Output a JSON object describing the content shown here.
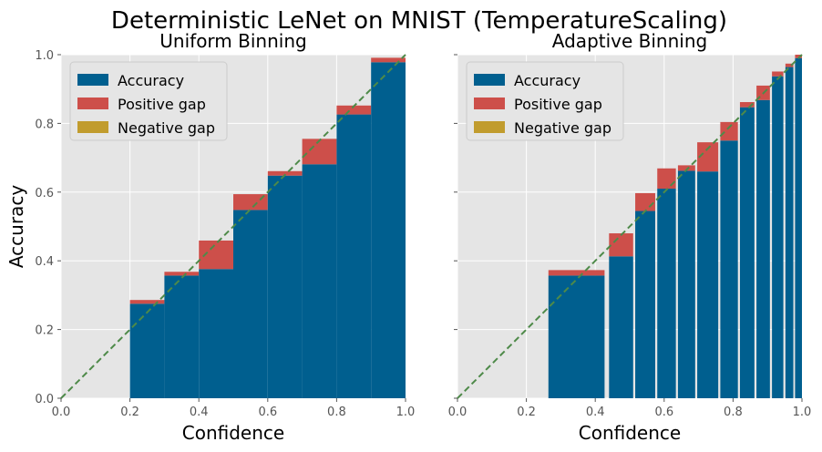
{
  "figure_title": "Deterministic LeNet on MNIST (TemperatureScaling)",
  "colors": {
    "accuracy": "#005f8f",
    "positive_gap": "#cd4f4a",
    "negative_gap": "#c19c2e",
    "diagonal": "#4e8a49",
    "axes_bg": "#e5e5e5",
    "grid": "#ffffff"
  },
  "chart_data": [
    {
      "type": "bar",
      "title": "Uniform Binning",
      "xlabel": "Confidence",
      "ylabel": "Accuracy",
      "xlim": [
        0,
        1
      ],
      "ylim": [
        0,
        1
      ],
      "xticks": [
        "0.0",
        "0.2",
        "0.4",
        "0.6",
        "0.8",
        "1.0"
      ],
      "yticks": [
        "0.0",
        "0.2",
        "0.4",
        "0.6",
        "0.8",
        "1.0"
      ],
      "grid": true,
      "legend_position": "top-left",
      "legend": [
        "Accuracy",
        "Positive gap",
        "Negative gap"
      ],
      "diagonal": "dashed y = x",
      "bins": [
        {
          "x0": 0.2,
          "x1": 0.3,
          "accuracy": 0.275,
          "confidence": 0.286
        },
        {
          "x0": 0.3,
          "x1": 0.4,
          "accuracy": 0.357,
          "confidence": 0.368
        },
        {
          "x0": 0.4,
          "x1": 0.5,
          "accuracy": 0.376,
          "confidence": 0.459
        },
        {
          "x0": 0.5,
          "x1": 0.6,
          "accuracy": 0.548,
          "confidence": 0.594
        },
        {
          "x0": 0.6,
          "x1": 0.7,
          "accuracy": 0.648,
          "confidence": 0.661
        },
        {
          "x0": 0.7,
          "x1": 0.8,
          "accuracy": 0.681,
          "confidence": 0.755
        },
        {
          "x0": 0.8,
          "x1": 0.9,
          "accuracy": 0.826,
          "confidence": 0.852
        },
        {
          "x0": 0.9,
          "x1": 1.0,
          "accuracy": 0.978,
          "confidence": 0.991
        }
      ]
    },
    {
      "type": "bar",
      "title": "Adaptive Binning",
      "xlabel": "Confidence",
      "ylabel": "",
      "xlim": [
        0,
        1
      ],
      "ylim": [
        0,
        1
      ],
      "xticks": [
        "0.0",
        "0.2",
        "0.4",
        "0.6",
        "0.8",
        "1.0"
      ],
      "yticks": [
        "",
        "",
        "",
        "",
        "",
        ""
      ],
      "grid": true,
      "legend_position": "top-left",
      "legend": [
        "Accuracy",
        "Positive gap",
        "Negative gap"
      ],
      "diagonal": "dashed y = x",
      "bins": [
        {
          "x0": 0.264,
          "x1": 0.427,
          "accuracy": 0.357,
          "confidence": 0.373
        },
        {
          "x0": 0.44,
          "x1": 0.51,
          "accuracy": 0.413,
          "confidence": 0.48
        },
        {
          "x0": 0.516,
          "x1": 0.574,
          "accuracy": 0.545,
          "confidence": 0.597
        },
        {
          "x0": 0.58,
          "x1": 0.634,
          "accuracy": 0.61,
          "confidence": 0.669
        },
        {
          "x0": 0.64,
          "x1": 0.69,
          "accuracy": 0.662,
          "confidence": 0.678
        },
        {
          "x0": 0.696,
          "x1": 0.757,
          "accuracy": 0.66,
          "confidence": 0.745
        },
        {
          "x0": 0.763,
          "x1": 0.814,
          "accuracy": 0.75,
          "confidence": 0.804
        },
        {
          "x0": 0.82,
          "x1": 0.862,
          "accuracy": 0.847,
          "confidence": 0.862
        },
        {
          "x0": 0.868,
          "x1": 0.907,
          "accuracy": 0.868,
          "confidence": 0.91
        },
        {
          "x0": 0.913,
          "x1": 0.946,
          "accuracy": 0.937,
          "confidence": 0.951
        },
        {
          "x0": 0.952,
          "x1": 0.975,
          "accuracy": 0.964,
          "confidence": 0.974
        },
        {
          "x0": 0.98,
          "x1": 1.0,
          "accuracy": 0.99,
          "confidence": 1.0
        }
      ]
    }
  ]
}
